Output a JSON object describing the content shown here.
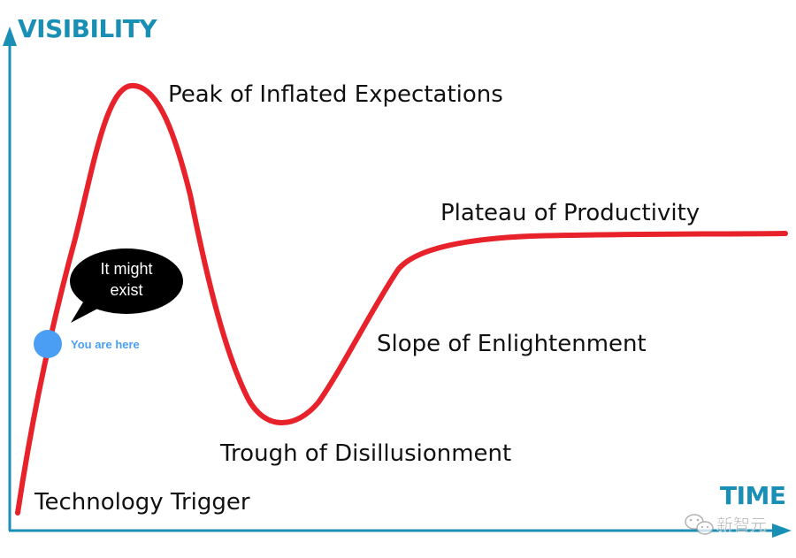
{
  "axes": {
    "y_title": "VISIBILITY",
    "x_title": "TIME",
    "color": "#1a8fb5"
  },
  "curve": {
    "color": "#e8222b"
  },
  "phases": {
    "trigger": "Technology Trigger",
    "peak": "Peak of Inflated Expectations",
    "trough": "Trough of Disillusionment",
    "slope": "Slope of Enlightenment",
    "plateau": "Plateau of Productivity"
  },
  "speech_bubble": {
    "line1": "It might",
    "line2": "exist",
    "color": "#000000"
  },
  "marker": {
    "label": "You are here",
    "color": "#4a9ff5"
  },
  "watermark": {
    "icon": "wechat-icon",
    "text": "新智元"
  }
}
